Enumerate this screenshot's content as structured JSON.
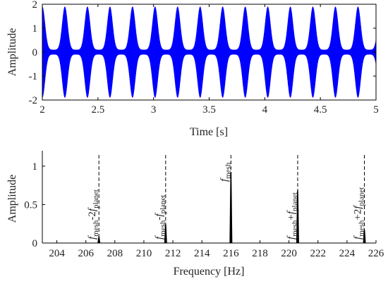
{
  "chart_data": [
    {
      "type": "line",
      "title": "",
      "xlabel": "Time [s]",
      "ylabel": "Amplitude",
      "xlim": [
        2,
        5
      ],
      "ylim": [
        -2,
        2
      ],
      "xticks": [
        "2",
        "2.5",
        "3",
        "3.5",
        "4",
        "4.5",
        "5"
      ],
      "yticks": [
        "-2",
        "-1",
        "0",
        "1",
        "2"
      ],
      "series": [
        {
          "color": "#0000ff",
          "description_values": {
            "envelope_peak_times": [
              2.0,
              2.2,
              2.4,
              2.61,
              2.81,
              3.01,
              3.21,
              3.41,
              3.61,
              3.82,
              4.02,
              4.22,
              4.42,
              4.63,
              4.83
            ],
            "peak_amplitude": 1.9,
            "trough_amplitude": 0.1,
            "carrier_frequency_hz": 216
          }
        }
      ]
    },
    {
      "type": "bar",
      "title": "",
      "xlabel": "Frequency [Hz]",
      "ylabel": "Amplitude",
      "xlim": [
        203,
        226
      ],
      "ylim": [
        0,
        1.2
      ],
      "xticks": [
        "204",
        "206",
        "208",
        "210",
        "212",
        "214",
        "216",
        "218",
        "220",
        "222",
        "224",
        "226"
      ],
      "yticks": [
        "0",
        "0.5",
        "1"
      ],
      "peaks": [
        {
          "x": 206.9,
          "y": 0.08,
          "label": "f",
          "sub1": "mesh",
          "op": "-2f",
          "sub2": "planet"
        },
        {
          "x": 211.5,
          "y": 0.24,
          "label": "f",
          "sub1": "mesh",
          "op": "-f",
          "sub2": "planet"
        },
        {
          "x": 216.0,
          "y": 0.92,
          "label": "f",
          "sub1": "mesh",
          "op": "",
          "sub2": ""
        },
        {
          "x": 220.6,
          "y": 0.68,
          "label": "f",
          "sub1": "mesh",
          "op": "+f",
          "sub2": "planet"
        },
        {
          "x": 225.2,
          "y": 0.17,
          "label": "f",
          "sub1": "mesh",
          "op": "+2f",
          "sub2": "planet"
        }
      ],
      "color": "#000000"
    }
  ]
}
